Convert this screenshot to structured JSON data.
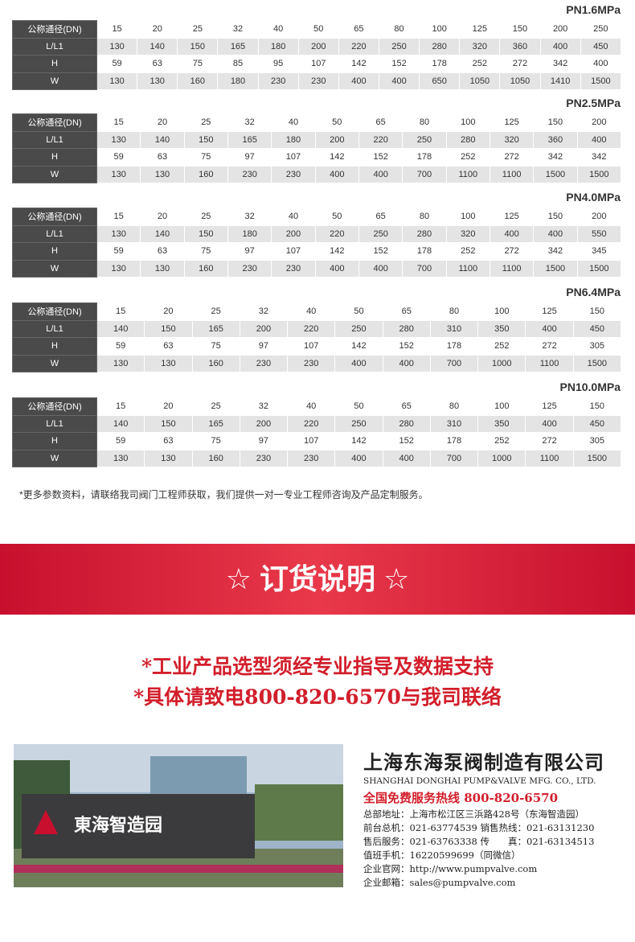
{
  "tables": [
    {
      "title": "PN1.6MPa",
      "rows": [
        [
          "公称通径(DN)",
          15,
          20,
          25,
          32,
          40,
          50,
          65,
          80,
          100,
          125,
          150,
          200,
          250
        ],
        [
          "L/L1",
          130,
          140,
          150,
          165,
          180,
          200,
          220,
          250,
          280,
          320,
          360,
          400,
          450
        ],
        [
          "H",
          59,
          63,
          75,
          85,
          95,
          107,
          142,
          152,
          178,
          252,
          272,
          342,
          400
        ],
        [
          "W",
          130,
          130,
          160,
          180,
          230,
          230,
          400,
          400,
          650,
          1050,
          1050,
          1410,
          1500
        ]
      ]
    },
    {
      "title": "PN2.5MPa",
      "rows": [
        [
          "公称通径(DN)",
          15,
          20,
          25,
          32,
          40,
          50,
          65,
          80,
          100,
          125,
          150,
          200
        ],
        [
          "L/L1",
          130,
          140,
          150,
          165,
          180,
          200,
          220,
          250,
          280,
          320,
          360,
          400
        ],
        [
          "H",
          59,
          63,
          75,
          97,
          107,
          142,
          152,
          178,
          252,
          272,
          342,
          342
        ],
        [
          "W",
          130,
          130,
          160,
          230,
          230,
          400,
          400,
          700,
          1100,
          1100,
          1500,
          1500
        ]
      ]
    },
    {
      "title": "PN4.0MPa",
      "rows": [
        [
          "公称通径(DN)",
          15,
          20,
          25,
          32,
          40,
          50,
          65,
          80,
          100,
          125,
          150,
          200
        ],
        [
          "L/L1",
          130,
          140,
          150,
          180,
          200,
          220,
          250,
          280,
          320,
          400,
          400,
          550
        ],
        [
          "H",
          59,
          63,
          75,
          97,
          107,
          142,
          152,
          178,
          252,
          272,
          342,
          345
        ],
        [
          "W",
          130,
          130,
          160,
          230,
          230,
          400,
          400,
          700,
          1100,
          1100,
          1500,
          1500
        ]
      ]
    },
    {
      "title": "PN6.4MPa",
      "rows": [
        [
          "公称通径(DN)",
          15,
          20,
          25,
          32,
          40,
          50,
          65,
          80,
          100,
          125,
          150
        ],
        [
          "L/L1",
          140,
          150,
          165,
          200,
          220,
          250,
          280,
          310,
          350,
          400,
          450
        ],
        [
          "H",
          59,
          63,
          75,
          97,
          107,
          142,
          152,
          178,
          252,
          272,
          305
        ],
        [
          "W",
          130,
          130,
          160,
          230,
          230,
          400,
          400,
          700,
          1000,
          1100,
          1500
        ]
      ]
    },
    {
      "title": "PN10.0MPa",
      "rows": [
        [
          "公称通径(DN)",
          15,
          20,
          25,
          32,
          40,
          50,
          65,
          80,
          100,
          125,
          150
        ],
        [
          "L/L1",
          140,
          150,
          165,
          200,
          220,
          250,
          280,
          310,
          350,
          400,
          450
        ],
        [
          "H",
          59,
          63,
          75,
          97,
          107,
          142,
          152,
          178,
          252,
          272,
          305
        ],
        [
          "W",
          130,
          130,
          160,
          230,
          230,
          400,
          400,
          700,
          1000,
          1100,
          1500
        ]
      ]
    }
  ],
  "note": "*更多参数资料，请联络我司阀门工程师获取，我们提供一对一专业工程师咨询及产品定制服务。",
  "banner": "☆ 订货说明 ☆",
  "order_lines": [
    "*工业产品选型须经专业指导及数据支持",
    "*具体请致电800-820-6570与我司联络"
  ],
  "company": {
    "sign": "東海智造园",
    "name": "上海东海泵阀制造有限公司",
    "name_en": "SHANGHAI DONGHAI PUMP&VALVE MFG. CO., LTD.",
    "hotline": "全国免费服务热线  800-820-6570",
    "lines": [
      "总部地址：上海市松江区三浜路428号（东海智造园）",
      "前台总机：021-63774539   销售热线：021-63131230",
      "售后服务：021-63763338   传　　真：021-63134513",
      "值班手机：16220599699（同微信）",
      "企业官网：http://www.pumpvalve.com",
      "企业邮箱：sales@pumpvalve.com"
    ]
  }
}
